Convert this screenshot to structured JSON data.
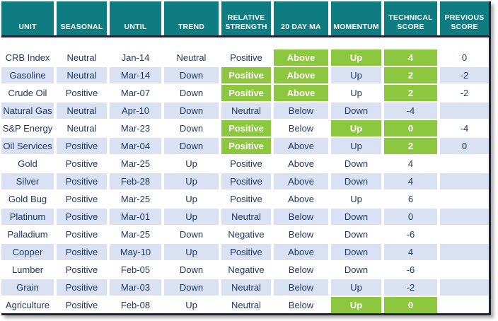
{
  "colors": {
    "header_bg": "#0E7C80",
    "header_text": "#FFFFFF",
    "highlight_green": "#8DC63F",
    "highlight_text": "#FFFFFF",
    "stripe_blue": "#D9E1F2",
    "row_white": "#FFFFFF",
    "text_navy": "#1F3864",
    "border_dark": "#1E2433"
  },
  "chart_data": {
    "type": "table",
    "columns": [
      "UNIT",
      "SEASONAL",
      "UNTIL",
      "TREND",
      "RELATIVE STRENGTH",
      "20 DAY MA",
      "MOMENTUM",
      "TECHNICAL SCORE",
      "PREVIOUS SCORE"
    ],
    "rows": [
      {
        "cells": [
          "CRB Index",
          "Neutral",
          "Jan-14",
          "Neutral",
          "Positive",
          "Above",
          "Up",
          "4",
          "0"
        ],
        "highlighted_columns": [
          5,
          6,
          7
        ]
      },
      {
        "cells": [
          "Gasoline",
          "Neutral",
          "Mar-14",
          "Down",
          "Positive",
          "Above",
          "Up",
          "2",
          "-2"
        ],
        "highlighted_columns": [
          4,
          5,
          7
        ]
      },
      {
        "cells": [
          "Crude Oil",
          "Positive",
          "Mar-07",
          "Down",
          "Positive",
          "Above",
          "Up",
          "2",
          "-2"
        ],
        "highlighted_columns": [
          4,
          5,
          7
        ]
      },
      {
        "cells": [
          "Natural Gas",
          "Neutral",
          "Apr-10",
          "Down",
          "Neutral",
          "Below",
          "Down",
          "-4",
          ""
        ],
        "highlighted_columns": []
      },
      {
        "cells": [
          "S&P Energy",
          "Neutral",
          "Mar-23",
          "Down",
          "Positive",
          "Below",
          "Up",
          "0",
          "-4"
        ],
        "highlighted_columns": [
          4,
          6,
          7
        ]
      },
      {
        "cells": [
          "Oil Services",
          "Positive",
          "Mar-04",
          "Down",
          "Positive",
          "Above",
          "Up",
          "2",
          "0"
        ],
        "highlighted_columns": [
          4,
          7
        ]
      },
      {
        "cells": [
          "Gold",
          "Positive",
          "Mar-25",
          "Up",
          "Positive",
          "Above",
          "Down",
          "4",
          ""
        ],
        "highlighted_columns": []
      },
      {
        "cells": [
          "Silver",
          "Positive",
          "Feb-28",
          "Up",
          "Positive",
          "Above",
          "Down",
          "4",
          ""
        ],
        "highlighted_columns": []
      },
      {
        "cells": [
          "Gold Bug",
          "Positive",
          "Mar-25",
          "Up",
          "Positive",
          "Above",
          "Up",
          "6",
          ""
        ],
        "highlighted_columns": []
      },
      {
        "cells": [
          "Platinum",
          "Positive",
          "Mar-01",
          "Up",
          "Neutral",
          "Below",
          "Down",
          "0",
          ""
        ],
        "highlighted_columns": []
      },
      {
        "cells": [
          "Palladium",
          "Positive",
          "Mar-25",
          "Down",
          "Negative",
          "Below",
          "Down",
          "-6",
          ""
        ],
        "highlighted_columns": []
      },
      {
        "cells": [
          "Copper",
          "Positive",
          "May-10",
          "Up",
          "Positive",
          "Above",
          "Down",
          "4",
          ""
        ],
        "highlighted_columns": []
      },
      {
        "cells": [
          "Lumber",
          "Positive",
          "Feb-05",
          "Down",
          "Negative",
          "Below",
          "Down",
          "-6",
          ""
        ],
        "highlighted_columns": []
      },
      {
        "cells": [
          "Grain",
          "Positive",
          "Mar-03",
          "Down",
          "Neutral",
          "Below",
          "Up",
          "-2",
          ""
        ],
        "highlighted_columns": []
      },
      {
        "cells": [
          "Agriculture",
          "Positive",
          "Feb-08",
          "Up",
          "Neutral",
          "Below",
          "Up",
          "0",
          ""
        ],
        "highlighted_columns": [
          6,
          7
        ]
      }
    ],
    "legend": {
      "highlight_color_hex": "#8DC63F"
    },
    "layout": {
      "striped_rows": true,
      "stripe_color_hex": "#D9E1F2",
      "header_color_hex": "#0E7C80"
    }
  }
}
